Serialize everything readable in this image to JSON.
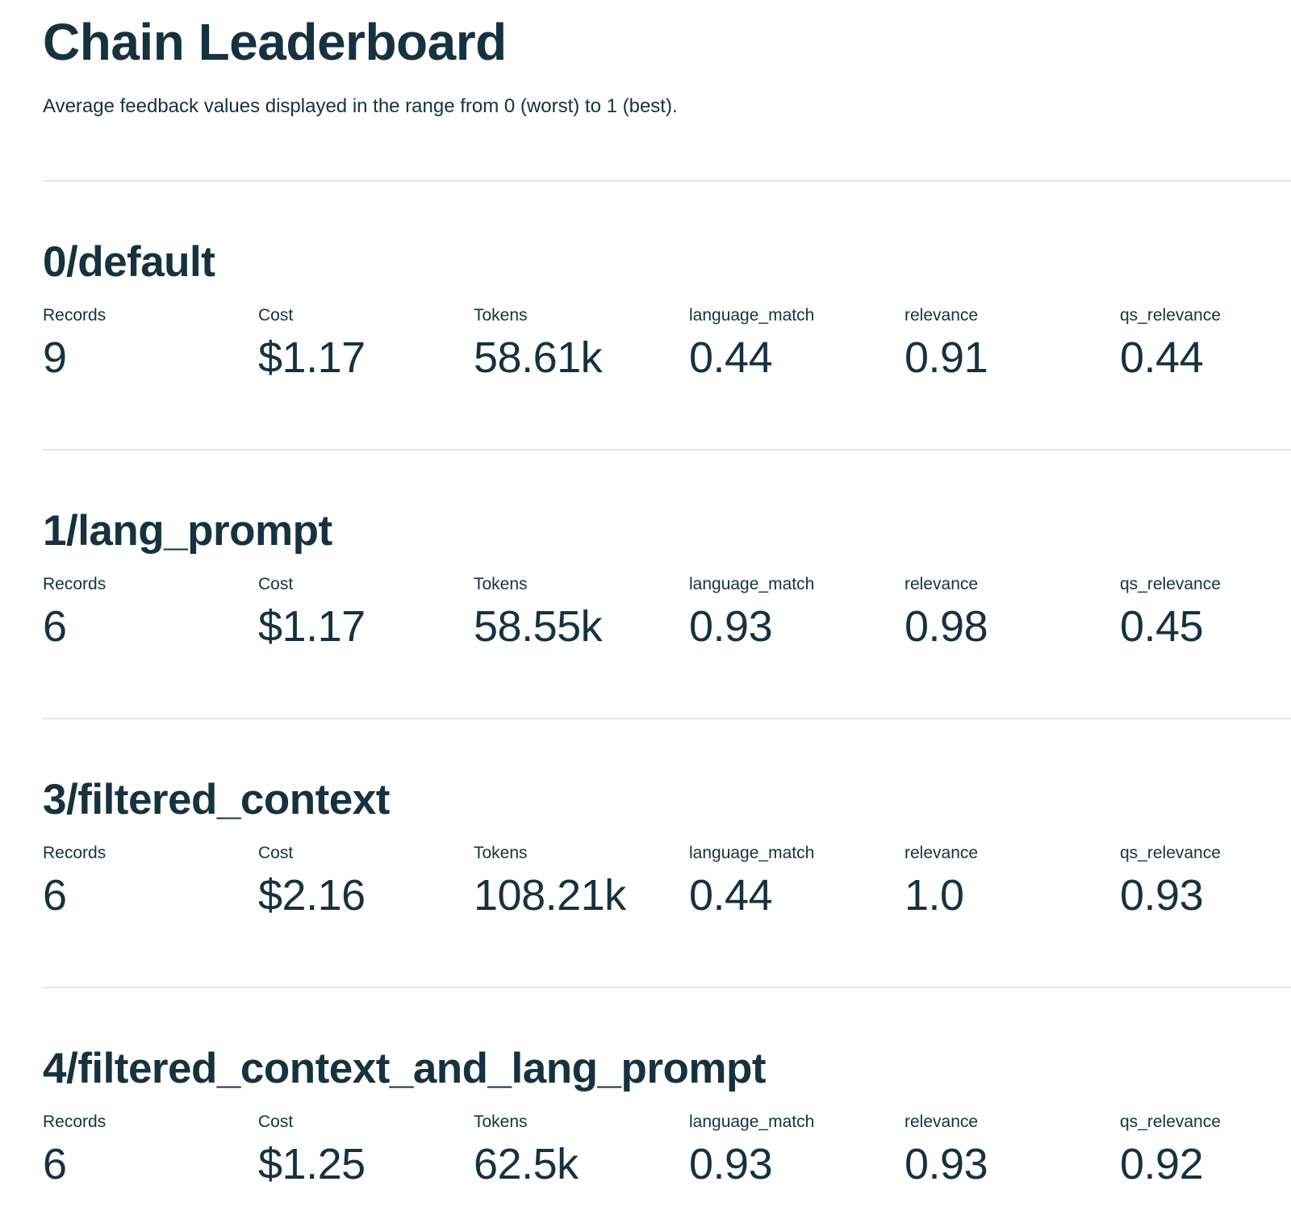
{
  "header": {
    "title": "Chain Leaderboard",
    "subtitle": "Average feedback values displayed in the range from 0 (worst) to 1 (best)."
  },
  "metric_columns": [
    "Records",
    "Cost",
    "Tokens",
    "language_match",
    "relevance",
    "qs_relevance"
  ],
  "colors": {
    "text": "#16323f",
    "divider": "#e2e7e9",
    "background": "#ffffff"
  },
  "sections": [
    {
      "name": "0/default",
      "records": "9",
      "cost": "$1.17",
      "tokens": "58.61k",
      "language_match": "0.44",
      "relevance": "0.91",
      "qs_relevance": "0.44"
    },
    {
      "name": "1/lang_prompt",
      "records": "6",
      "cost": "$1.17",
      "tokens": "58.55k",
      "language_match": "0.93",
      "relevance": "0.98",
      "qs_relevance": "0.45"
    },
    {
      "name": "3/filtered_context",
      "records": "6",
      "cost": "$2.16",
      "tokens": "108.21k",
      "language_match": "0.44",
      "relevance": "1.0",
      "qs_relevance": "0.93"
    },
    {
      "name": "4/filtered_context_and_lang_prompt",
      "records": "6",
      "cost": "$1.25",
      "tokens": "62.5k",
      "language_match": "0.93",
      "relevance": "0.93",
      "qs_relevance": "0.92"
    }
  ]
}
